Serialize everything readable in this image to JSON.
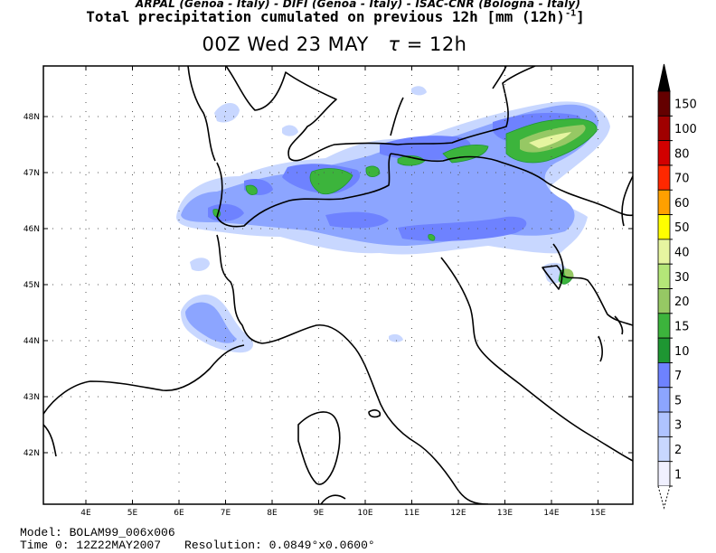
{
  "header": {
    "credit": "ARPAL (Genoa - Italy)  -  DIFI (Genoa - Italy)  -  ISAC-CNR (Bologna - Italy)",
    "title": "Total precipitation cumulated on previous 12h [mm (12h)",
    "title_unit_exp": "-1",
    "title_end": "]",
    "time": "00Z Wed 23 MAY",
    "tau_symbol": "τ",
    "tau_value": "= 12h"
  },
  "map": {
    "lon_labels": [
      "4E",
      "5E",
      "6E",
      "7E",
      "8E",
      "9E",
      "10E",
      "11E",
      "12E",
      "13E",
      "14E",
      "15E"
    ],
    "lat_labels": [
      "48N",
      "47N",
      "46N",
      "45N",
      "44N",
      "43N",
      "42N"
    ],
    "grid": "dotted"
  },
  "colorbar": {
    "levels": [
      "1",
      "2",
      "3",
      "5",
      "7",
      "10",
      "15",
      "20",
      "30",
      "40",
      "50",
      "60",
      "70",
      "80",
      "100",
      "150"
    ],
    "colors": [
      "#f0f0ff",
      "#c8d7ff",
      "#afc3ff",
      "#8ca5ff",
      "#6e82ff",
      "#1e9632",
      "#3cb43c",
      "#96c864",
      "#b4e678",
      "#e6f5a0",
      "#ffff00",
      "#ffa000",
      "#ff2800",
      "#d20000",
      "#a00000",
      "#640000"
    ],
    "above_color": "#000000"
  },
  "precip_colors": {
    "light": "#c8d7ff",
    "medium": "#8ca5ff",
    "heavy": "#6e82ff",
    "green_dark": "#1e9632",
    "green": "#3cb43c",
    "olive": "#96c864",
    "pale": "#e6f5a0"
  },
  "footer": {
    "model": "Model: BOLAM99_006x006",
    "time0": "Time 0: 12Z22MAY2007",
    "resolution": "Resolution: 0.0849°x0.0600°"
  }
}
